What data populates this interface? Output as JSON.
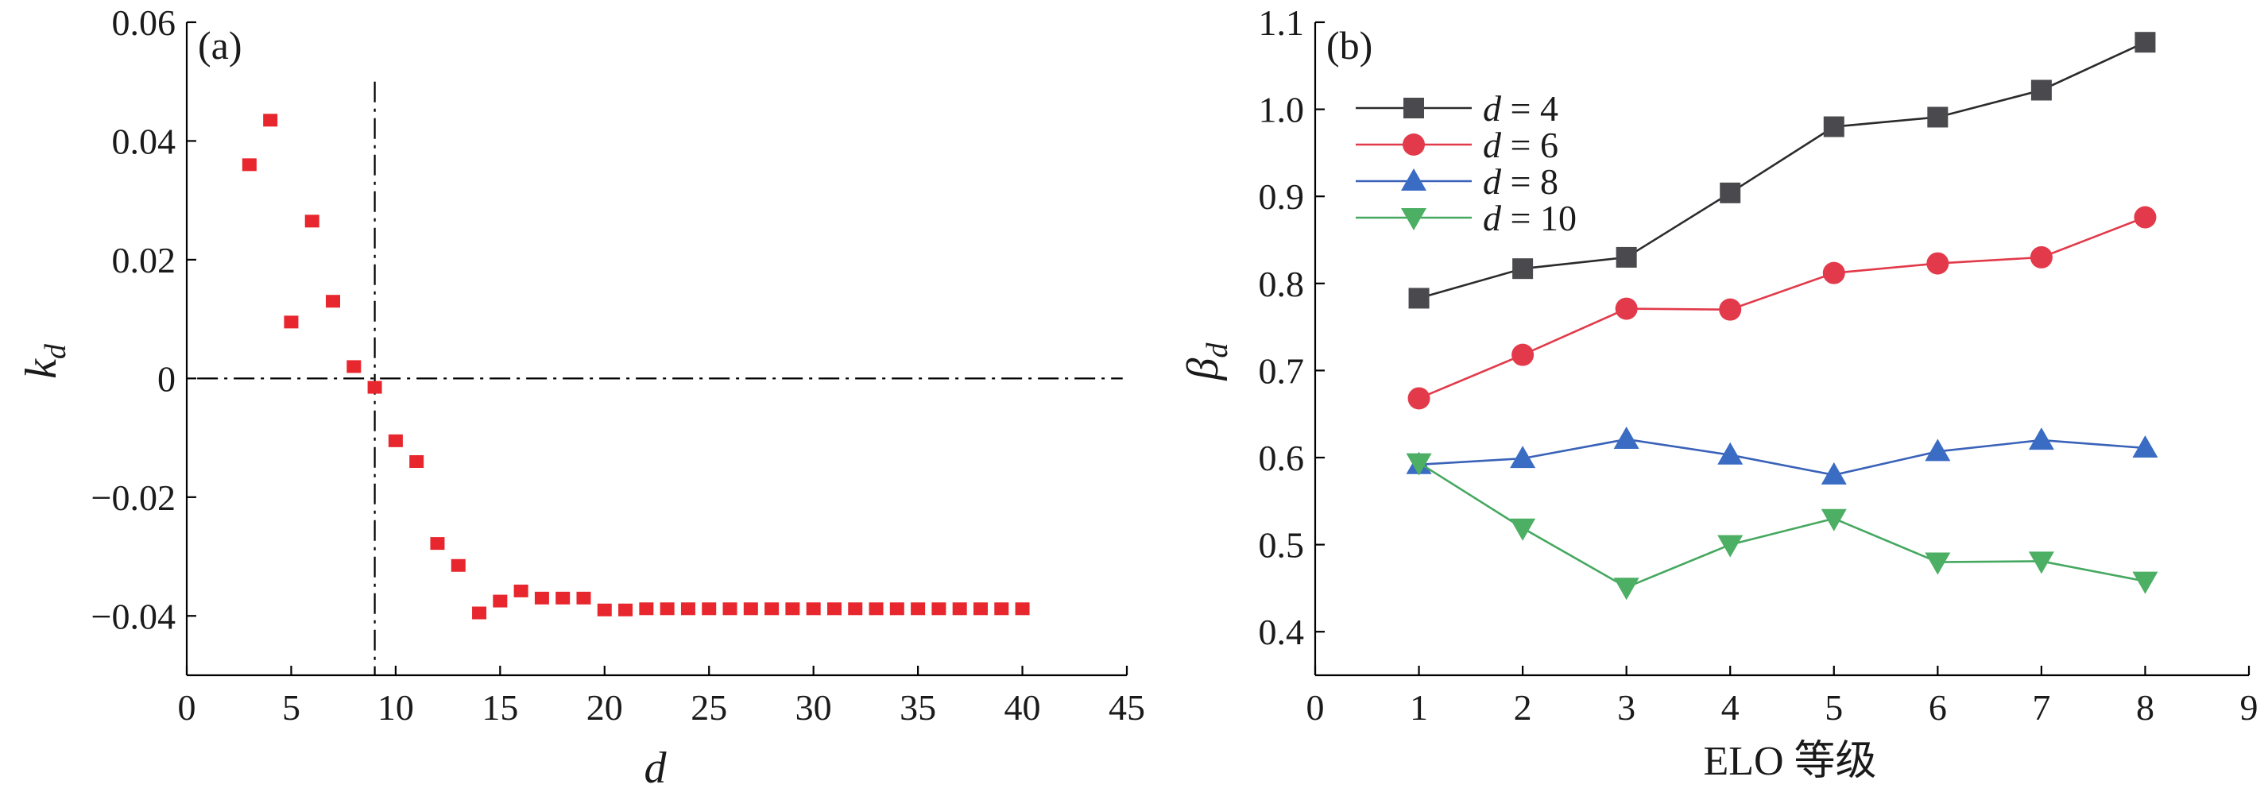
{
  "chart_data": [
    {
      "type": "scatter",
      "panel_label": "(a)",
      "xlabel": "d",
      "ylabel": "k",
      "ylabel_sub": "d",
      "xlim": [
        0,
        45
      ],
      "ylim": [
        -0.05,
        0.06
      ],
      "x_ticks": [
        0,
        5,
        10,
        15,
        20,
        25,
        30,
        35,
        40,
        45
      ],
      "x_tick_labels": [
        "0",
        "5",
        "10",
        "15",
        "20",
        "25",
        "30",
        "35",
        "40",
        "45"
      ],
      "y_ticks": [
        -0.04,
        -0.02,
        0,
        0.02,
        0.04,
        0.06
      ],
      "y_tick_labels": [
        "−0.04",
        "−0.02",
        "0",
        "0.02",
        "0.04",
        "0.06"
      ],
      "reference_lines": {
        "vertical_x": 9,
        "vertical_y_top": 0.05,
        "horizontal_y": 0
      },
      "marker_color": "#e8262d",
      "x": [
        3,
        4,
        5,
        6,
        7,
        8,
        9,
        10,
        11,
        12,
        13,
        14,
        15,
        16,
        17,
        18,
        19,
        20,
        21,
        22,
        23,
        24,
        25,
        26,
        27,
        28,
        29,
        30,
        31,
        32,
        33,
        34,
        35,
        36,
        37,
        38,
        39,
        40
      ],
      "y": [
        0.036,
        0.0435,
        0.0095,
        0.0265,
        0.013,
        0.002,
        -0.0015,
        -0.0105,
        -0.014,
        -0.0278,
        -0.0315,
        -0.0395,
        -0.0375,
        -0.0358,
        -0.037,
        -0.037,
        -0.037,
        -0.039,
        -0.039,
        -0.0388,
        -0.0388,
        -0.0388,
        -0.0388,
        -0.0388,
        -0.0388,
        -0.0388,
        -0.0388,
        -0.0388,
        -0.0388,
        -0.0388,
        -0.0388,
        -0.0388,
        -0.0388,
        -0.0388,
        -0.0388,
        -0.0388,
        -0.0388,
        -0.0388
      ]
    },
    {
      "type": "line",
      "panel_label": "(b)",
      "xlabel": "ELO 等级",
      "ylabel": "β",
      "ylabel_sub": "d",
      "xlim": [
        0,
        9
      ],
      "ylim": [
        0.35,
        1.1
      ],
      "x_ticks": [
        0,
        1,
        2,
        3,
        4,
        5,
        6,
        7,
        8,
        9
      ],
      "x_tick_labels": [
        "0",
        "1",
        "2",
        "3",
        "4",
        "5",
        "6",
        "7",
        "8",
        "9"
      ],
      "y_ticks": [
        0.4,
        0.5,
        0.6,
        0.7,
        0.8,
        0.9,
        1.0,
        1.1
      ],
      "y_tick_labels": [
        "0.4",
        "0.5",
        "0.6",
        "0.7",
        "0.8",
        "0.9",
        "1.0",
        "1.1"
      ],
      "legend_position": "top-left",
      "x": [
        1,
        2,
        3,
        4,
        5,
        6,
        7,
        8
      ],
      "series": [
        {
          "name": "d = 4",
          "name_var": "d",
          "name_rest": " = 4",
          "marker": "square",
          "line_color": "#2b2b2b",
          "marker_color": "#4a4a4e",
          "values": [
            0.783,
            0.817,
            0.83,
            0.904,
            0.98,
            0.991,
            1.022,
            1.077
          ]
        },
        {
          "name": "d = 6",
          "name_var": "d",
          "name_rest": " = 6",
          "marker": "circle",
          "line_color": "#e23a4a",
          "marker_color": "#e23a4a",
          "values": [
            0.668,
            0.718,
            0.771,
            0.77,
            0.812,
            0.823,
            0.83,
            0.876
          ]
        },
        {
          "name": "d = 8",
          "name_var": "d",
          "name_rest": " = 8",
          "marker": "triangle-up",
          "line_color": "#3a62b8",
          "marker_color": "#3a6cc4",
          "values": [
            0.592,
            0.599,
            0.621,
            0.603,
            0.58,
            0.607,
            0.62,
            0.611
          ]
        },
        {
          "name": "d = 10",
          "name_var": "d",
          "name_rest": " = 10",
          "marker": "triangle-down",
          "line_color": "#46a860",
          "marker_color": "#4caf63",
          "values": [
            0.594,
            0.519,
            0.451,
            0.5,
            0.53,
            0.48,
            0.481,
            0.458
          ]
        }
      ]
    }
  ]
}
